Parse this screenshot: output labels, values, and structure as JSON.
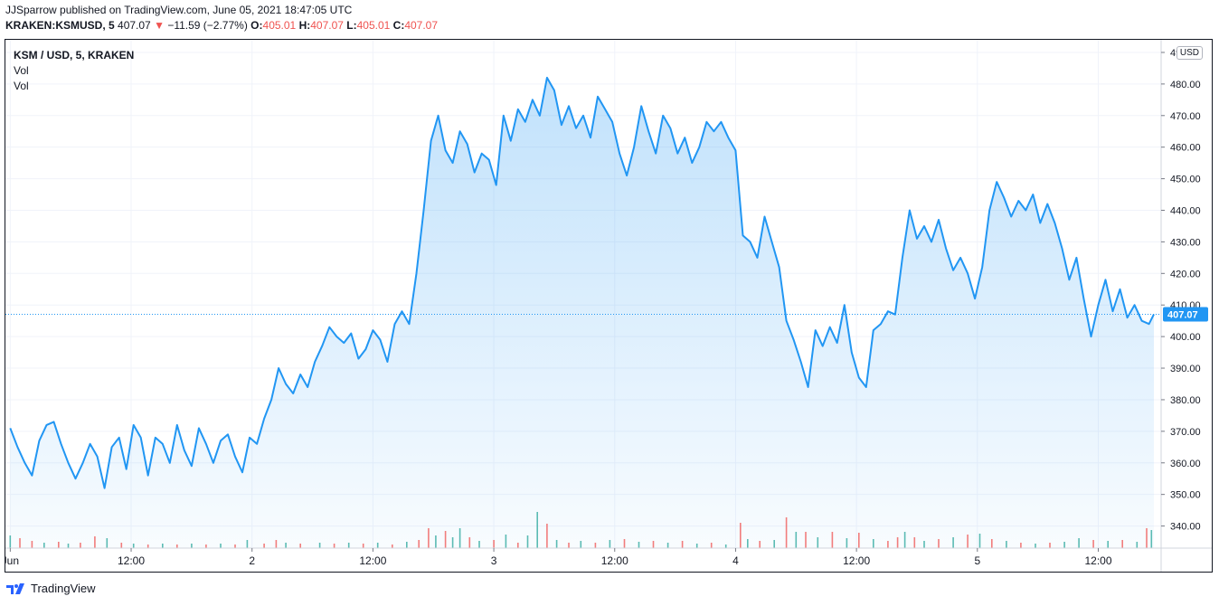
{
  "header": {
    "published": "JJSparrow published on TradingView.com, June 05, 2021 18:47:05 UTC",
    "symbol": "KRAKEN:KSMUSD, 5",
    "last": "407.07",
    "arrow": "▼",
    "change": "−11.59 (−2.77%)",
    "o_label": "O:",
    "o_value": "405.01",
    "h_label": "H:",
    "h_value": "407.07",
    "l_label": "L:",
    "l_value": "405.01",
    "c_label": "C:",
    "c_value": "407.07"
  },
  "legend": {
    "title": "KSM / USD, 5, KRAKEN",
    "vol1": "Vol",
    "vol2": "Vol"
  },
  "currency": "USD",
  "footer": {
    "brand": "TradingView"
  },
  "colors": {
    "line": "#2196f3",
    "fill": "#2196f3",
    "up": "#26a69a",
    "down": "#ef5350",
    "last_badge": "#2196f3"
  },
  "chart_data": {
    "type": "area",
    "title": "KSM / USD, 5, KRAKEN",
    "xlabel": "",
    "ylabel": "",
    "ylim": [
      333,
      494
    ],
    "y_ticks": [
      "340.00",
      "350.00",
      "360.00",
      "370.00",
      "380.00",
      "390.00",
      "400.00",
      "410.00",
      "420.00",
      "430.00",
      "440.00",
      "450.00",
      "460.00",
      "470.00",
      "480.00",
      "490.00"
    ],
    "x_tick_labels": [
      {
        "x": 0.0,
        "label": "Jun"
      },
      {
        "x": 0.5,
        "label": "12:00"
      },
      {
        "x": 1.0,
        "label": "2"
      },
      {
        "x": 1.5,
        "label": "12:00"
      },
      {
        "x": 2.0,
        "label": "3"
      },
      {
        "x": 2.5,
        "label": "12:00"
      },
      {
        "x": 3.0,
        "label": "4"
      },
      {
        "x": 3.5,
        "label": "12:00"
      },
      {
        "x": 4.0,
        "label": "5"
      },
      {
        "x": 4.5,
        "label": "12:00"
      }
    ],
    "x_unit": "days since Jun 1, 2021 00:00 UTC",
    "last_price": 407.07,
    "grid": true,
    "series": [
      {
        "name": "KSM/USD close",
        "points": [
          [
            0.0,
            371
          ],
          [
            0.03,
            365
          ],
          [
            0.06,
            360
          ],
          [
            0.09,
            356
          ],
          [
            0.12,
            367
          ],
          [
            0.15,
            372
          ],
          [
            0.18,
            373
          ],
          [
            0.21,
            366
          ],
          [
            0.24,
            360
          ],
          [
            0.27,
            355
          ],
          [
            0.3,
            360
          ],
          [
            0.33,
            366
          ],
          [
            0.36,
            362
          ],
          [
            0.39,
            352
          ],
          [
            0.42,
            365
          ],
          [
            0.45,
            368
          ],
          [
            0.48,
            358
          ],
          [
            0.51,
            372
          ],
          [
            0.54,
            368
          ],
          [
            0.57,
            356
          ],
          [
            0.6,
            368
          ],
          [
            0.63,
            366
          ],
          [
            0.66,
            360
          ],
          [
            0.69,
            372
          ],
          [
            0.72,
            364
          ],
          [
            0.75,
            359
          ],
          [
            0.78,
            371
          ],
          [
            0.81,
            366
          ],
          [
            0.84,
            360
          ],
          [
            0.87,
            367
          ],
          [
            0.9,
            369
          ],
          [
            0.93,
            362
          ],
          [
            0.96,
            357
          ],
          [
            0.99,
            368
          ],
          [
            1.02,
            366
          ],
          [
            1.05,
            374
          ],
          [
            1.08,
            380
          ],
          [
            1.11,
            390
          ],
          [
            1.14,
            385
          ],
          [
            1.17,
            382
          ],
          [
            1.2,
            388
          ],
          [
            1.23,
            384
          ],
          [
            1.26,
            392
          ],
          [
            1.29,
            397
          ],
          [
            1.32,
            403
          ],
          [
            1.35,
            400
          ],
          [
            1.38,
            398
          ],
          [
            1.41,
            401
          ],
          [
            1.44,
            393
          ],
          [
            1.47,
            396
          ],
          [
            1.5,
            402
          ],
          [
            1.53,
            399
          ],
          [
            1.56,
            392
          ],
          [
            1.59,
            404
          ],
          [
            1.62,
            408
          ],
          [
            1.65,
            404
          ],
          [
            1.68,
            420
          ],
          [
            1.71,
            440
          ],
          [
            1.74,
            462
          ],
          [
            1.77,
            470
          ],
          [
            1.8,
            459
          ],
          [
            1.83,
            455
          ],
          [
            1.86,
            465
          ],
          [
            1.89,
            461
          ],
          [
            1.92,
            452
          ],
          [
            1.95,
            458
          ],
          [
            1.98,
            456
          ],
          [
            2.01,
            448
          ],
          [
            2.04,
            470
          ],
          [
            2.07,
            462
          ],
          [
            2.1,
            472
          ],
          [
            2.13,
            468
          ],
          [
            2.16,
            475
          ],
          [
            2.19,
            470
          ],
          [
            2.22,
            482
          ],
          [
            2.25,
            478
          ],
          [
            2.28,
            467
          ],
          [
            2.31,
            473
          ],
          [
            2.34,
            466
          ],
          [
            2.37,
            470
          ],
          [
            2.4,
            463
          ],
          [
            2.43,
            476
          ],
          [
            2.46,
            472
          ],
          [
            2.49,
            468
          ],
          [
            2.52,
            458
          ],
          [
            2.55,
            451
          ],
          [
            2.58,
            460
          ],
          [
            2.61,
            473
          ],
          [
            2.64,
            465
          ],
          [
            2.67,
            458
          ],
          [
            2.7,
            470
          ],
          [
            2.73,
            466
          ],
          [
            2.76,
            458
          ],
          [
            2.79,
            463
          ],
          [
            2.82,
            455
          ],
          [
            2.85,
            460
          ],
          [
            2.88,
            468
          ],
          [
            2.91,
            465
          ],
          [
            2.94,
            468
          ],
          [
            2.97,
            463
          ],
          [
            3.0,
            459
          ],
          [
            3.03,
            432
          ],
          [
            3.06,
            430
          ],
          [
            3.09,
            425
          ],
          [
            3.12,
            438
          ],
          [
            3.15,
            430
          ],
          [
            3.18,
            422
          ],
          [
            3.21,
            405
          ],
          [
            3.24,
            399
          ],
          [
            3.27,
            392
          ],
          [
            3.3,
            384
          ],
          [
            3.33,
            402
          ],
          [
            3.36,
            397
          ],
          [
            3.39,
            403
          ],
          [
            3.42,
            398
          ],
          [
            3.45,
            410
          ],
          [
            3.48,
            395
          ],
          [
            3.51,
            387
          ],
          [
            3.54,
            384
          ],
          [
            3.57,
            402
          ],
          [
            3.6,
            404
          ],
          [
            3.63,
            408
          ],
          [
            3.66,
            407
          ],
          [
            3.69,
            425
          ],
          [
            3.72,
            440
          ],
          [
            3.75,
            431
          ],
          [
            3.78,
            435
          ],
          [
            3.81,
            430
          ],
          [
            3.84,
            437
          ],
          [
            3.87,
            428
          ],
          [
            3.9,
            421
          ],
          [
            3.93,
            425
          ],
          [
            3.96,
            420
          ],
          [
            3.99,
            412
          ],
          [
            4.02,
            422
          ],
          [
            4.05,
            440
          ],
          [
            4.08,
            449
          ],
          [
            4.11,
            444
          ],
          [
            4.14,
            438
          ],
          [
            4.17,
            443
          ],
          [
            4.2,
            440
          ],
          [
            4.23,
            445
          ],
          [
            4.26,
            436
          ],
          [
            4.29,
            442
          ],
          [
            4.32,
            436
          ],
          [
            4.35,
            428
          ],
          [
            4.38,
            418
          ],
          [
            4.41,
            425
          ],
          [
            4.44,
            412
          ],
          [
            4.47,
            400
          ],
          [
            4.5,
            410
          ],
          [
            4.53,
            418
          ],
          [
            4.56,
            408
          ],
          [
            4.59,
            415
          ],
          [
            4.62,
            406
          ],
          [
            4.65,
            410
          ],
          [
            4.68,
            405
          ],
          [
            4.71,
            404
          ],
          [
            4.73,
            407.07
          ]
        ]
      }
    ],
    "volume": {
      "note": "5-minute volume bars drawn along the bottom of the pane",
      "bars": [
        [
          0.0,
          14,
          "up"
        ],
        [
          0.04,
          11,
          "down"
        ],
        [
          0.09,
          8,
          "down"
        ],
        [
          0.14,
          6,
          "up"
        ],
        [
          0.2,
          7,
          "down"
        ],
        [
          0.24,
          5,
          "up"
        ],
        [
          0.29,
          6,
          "down"
        ],
        [
          0.35,
          13,
          "down"
        ],
        [
          0.4,
          11,
          "up"
        ],
        [
          0.46,
          6,
          "down"
        ],
        [
          0.51,
          5,
          "up"
        ],
        [
          0.57,
          4,
          "down"
        ],
        [
          0.63,
          5,
          "up"
        ],
        [
          0.69,
          4,
          "down"
        ],
        [
          0.75,
          5,
          "up"
        ],
        [
          0.81,
          4,
          "down"
        ],
        [
          0.87,
          5,
          "up"
        ],
        [
          0.93,
          4,
          "down"
        ],
        [
          0.98,
          9,
          "up"
        ],
        [
          1.05,
          5,
          "down"
        ],
        [
          1.1,
          9,
          "down"
        ],
        [
          1.14,
          6,
          "up"
        ],
        [
          1.2,
          5,
          "down"
        ],
        [
          1.28,
          6,
          "up"
        ],
        [
          1.34,
          5,
          "down"
        ],
        [
          1.4,
          6,
          "up"
        ],
        [
          1.46,
          5,
          "down"
        ],
        [
          1.52,
          6,
          "up"
        ],
        [
          1.58,
          4,
          "down"
        ],
        [
          1.64,
          7,
          "up"
        ],
        [
          1.69,
          9,
          "down"
        ],
        [
          1.73,
          22,
          "down"
        ],
        [
          1.76,
          14,
          "up"
        ],
        [
          1.8,
          19,
          "down"
        ],
        [
          1.83,
          12,
          "up"
        ],
        [
          1.86,
          22,
          "up"
        ],
        [
          1.9,
          12,
          "down"
        ],
        [
          1.94,
          8,
          "up"
        ],
        [
          2.0,
          9,
          "down"
        ],
        [
          2.05,
          15,
          "up"
        ],
        [
          2.1,
          6,
          "down"
        ],
        [
          2.14,
          14,
          "up"
        ],
        [
          2.18,
          40,
          "up"
        ],
        [
          2.22,
          27,
          "down"
        ],
        [
          2.26,
          9,
          "up"
        ],
        [
          2.31,
          6,
          "down"
        ],
        [
          2.36,
          8,
          "up"
        ],
        [
          2.42,
          6,
          "down"
        ],
        [
          2.48,
          9,
          "up"
        ],
        [
          2.54,
          10,
          "down"
        ],
        [
          2.6,
          7,
          "up"
        ],
        [
          2.66,
          8,
          "down"
        ],
        [
          2.72,
          6,
          "up"
        ],
        [
          2.78,
          8,
          "down"
        ],
        [
          2.84,
          5,
          "up"
        ],
        [
          2.9,
          6,
          "down"
        ],
        [
          2.96,
          4,
          "up"
        ],
        [
          3.02,
          28,
          "down"
        ],
        [
          3.05,
          10,
          "up"
        ],
        [
          3.1,
          8,
          "down"
        ],
        [
          3.16,
          9,
          "up"
        ],
        [
          3.21,
          34,
          "down"
        ],
        [
          3.25,
          18,
          "up"
        ],
        [
          3.29,
          18,
          "down"
        ],
        [
          3.34,
          12,
          "up"
        ],
        [
          3.4,
          18,
          "down"
        ],
        [
          3.46,
          11,
          "up"
        ],
        [
          3.51,
          17,
          "down"
        ],
        [
          3.57,
          10,
          "up"
        ],
        [
          3.63,
          8,
          "down"
        ],
        [
          3.67,
          12,
          "down"
        ],
        [
          3.7,
          18,
          "up"
        ],
        [
          3.74,
          12,
          "down"
        ],
        [
          3.78,
          8,
          "up"
        ],
        [
          3.84,
          10,
          "down"
        ],
        [
          3.9,
          12,
          "up"
        ],
        [
          3.96,
          15,
          "down"
        ],
        [
          4.01,
          16,
          "up"
        ],
        [
          4.06,
          10,
          "down"
        ],
        [
          4.12,
          8,
          "up"
        ],
        [
          4.18,
          6,
          "down"
        ],
        [
          4.24,
          5,
          "up"
        ],
        [
          4.3,
          6,
          "down"
        ],
        [
          4.36,
          7,
          "up"
        ],
        [
          4.42,
          11,
          "up"
        ],
        [
          4.48,
          9,
          "down"
        ],
        [
          4.54,
          8,
          "up"
        ],
        [
          4.6,
          9,
          "down"
        ],
        [
          4.66,
          7,
          "up"
        ],
        [
          4.7,
          22,
          "down"
        ],
        [
          4.72,
          20,
          "up"
        ]
      ]
    }
  }
}
